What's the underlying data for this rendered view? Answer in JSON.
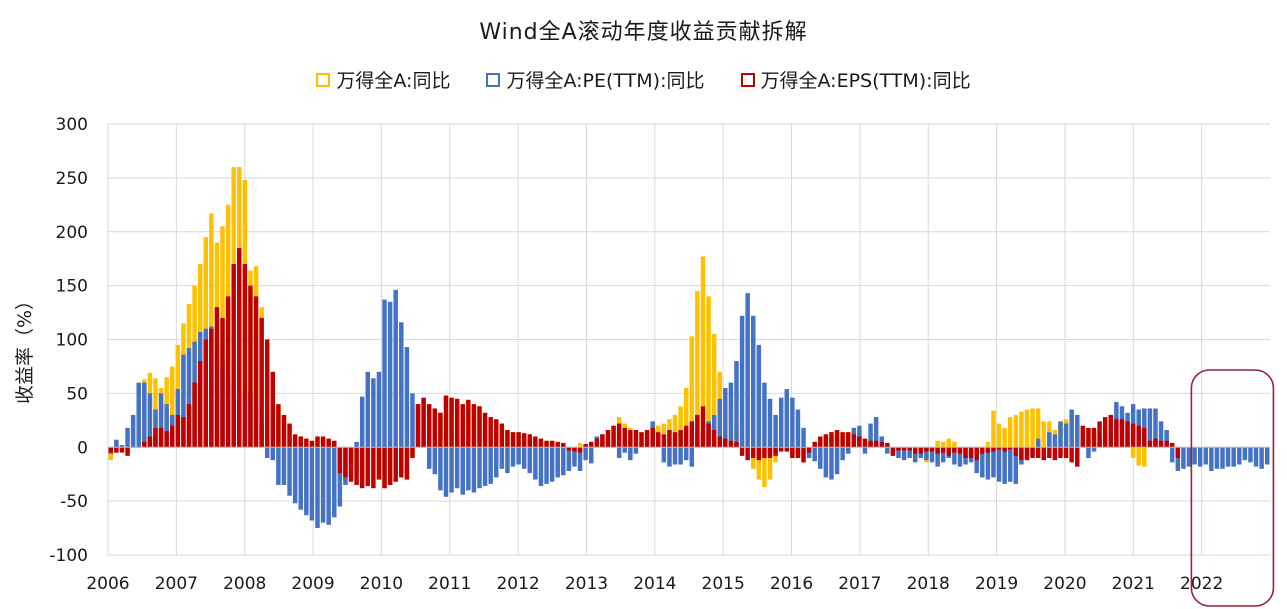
{
  "chart_data": {
    "type": "bar",
    "title": "Wind全A滚动年度收益贡献拆解",
    "ylabel": "收益率（%）",
    "xlabel": "",
    "ylim": [
      -100,
      300
    ],
    "yticks": [
      "300",
      "250",
      "200",
      "150",
      "100",
      "50",
      "0",
      "-50",
      "-100"
    ],
    "xticks": [
      "2006",
      "2007",
      "2008",
      "2009",
      "2010",
      "2011",
      "2012",
      "2013",
      "2014",
      "2015",
      "2016",
      "2017",
      "2018",
      "2019",
      "2020",
      "2021",
      "2022"
    ],
    "grid": true,
    "legend_position": "top",
    "highlight": {
      "x_start": 2021.85,
      "x_end": 2023.05,
      "color": "#9b2335"
    },
    "x_start": 2006,
    "x_end": 2023,
    "series": [
      {
        "name": "万得全A:同比",
        "color": "#ffc000",
        "values": [
          -12,
          5,
          -3,
          -6,
          15,
          30,
          63,
          69,
          64,
          55,
          65,
          75,
          95,
          115,
          133,
          150,
          170,
          195,
          217,
          190,
          205,
          225,
          260,
          260,
          248,
          164,
          168,
          130,
          98,
          68,
          40,
          30,
          22,
          12,
          10,
          8,
          6,
          10,
          10,
          8,
          6,
          -38,
          -28,
          -15,
          -24,
          -32,
          -36,
          -34,
          -30,
          -38,
          -35,
          -32,
          -28,
          -30,
          -10,
          40,
          46,
          40,
          36,
          32,
          48,
          46,
          45,
          40,
          44,
          40,
          38,
          32,
          28,
          26,
          22,
          16,
          14,
          14,
          13,
          12,
          10,
          8,
          6,
          6,
          5,
          4,
          -12,
          -15,
          4,
          3,
          5,
          8,
          12,
          16,
          20,
          28,
          22,
          18,
          16,
          14,
          16,
          18,
          20,
          22,
          26,
          30,
          38,
          55,
          103,
          145,
          177,
          140,
          105,
          70,
          50,
          40,
          20,
          5,
          -8,
          -20,
          -30,
          -37,
          -30,
          -14,
          -4,
          -4,
          -10,
          -10,
          -14,
          -5,
          5,
          10,
          12,
          14,
          16,
          14,
          14,
          12,
          10,
          8,
          6,
          6,
          5,
          4,
          -8,
          -3,
          -3,
          -3,
          -6,
          -10,
          -14,
          -4,
          6,
          5,
          8,
          5,
          -6,
          -10,
          -10,
          -12,
          -6,
          5,
          34,
          22,
          18,
          28,
          30,
          33,
          35,
          36,
          36,
          24,
          24,
          16,
          24,
          26,
          28,
          24,
          20,
          16,
          12,
          8,
          6,
          6,
          6,
          4,
          4,
          -10,
          -17,
          -18
        ],
        "note": "total"
      },
      {
        "name": "万得全A:PE(TTM):同比",
        "color": "#4472c4",
        "values": [
          -6,
          7,
          2,
          18,
          30,
          60,
          60,
          50,
          35,
          50,
          40,
          30,
          54,
          86,
          92,
          98,
          107,
          110,
          112,
          95,
          80,
          65,
          60,
          50,
          50,
          50,
          40,
          20,
          -10,
          -12,
          -35,
          -35,
          -45,
          -52,
          -58,
          -63,
          -68,
          -75,
          -70,
          -72,
          -65,
          -55,
          -35,
          -28,
          5,
          47,
          70,
          64,
          70,
          137,
          135,
          146,
          116,
          93,
          50,
          40,
          10,
          -20,
          -25,
          -40,
          -46,
          -42,
          -38,
          -44,
          -40,
          -42,
          -38,
          -36,
          -34,
          -28,
          -20,
          -24,
          -18,
          -16,
          -20,
          -24,
          -30,
          -36,
          -34,
          -32,
          -28,
          -26,
          -22,
          -18,
          -22,
          -12,
          -15,
          10,
          12,
          6,
          0,
          -10,
          -5,
          -12,
          -6,
          4,
          10,
          24,
          12,
          -14,
          -18,
          -16,
          -16,
          -12,
          -18,
          12,
          14,
          24,
          30,
          45,
          55,
          60,
          80,
          122,
          143,
          122,
          95,
          60,
          45,
          30,
          46,
          54,
          46,
          35,
          18,
          -10,
          -13,
          -20,
          -28,
          -30,
          -25,
          -12,
          -6,
          18,
          20,
          -6,
          22,
          28,
          10,
          -6,
          -4,
          -10,
          -12,
          -10,
          -14,
          -10,
          -12,
          -14,
          -18,
          -14,
          -10,
          -16,
          -18,
          -16,
          -14,
          -24,
          -28,
          -30,
          -28,
          -32,
          -34,
          -32,
          -34,
          -16,
          -10,
          -8,
          8,
          -6,
          14,
          12,
          24,
          22,
          35,
          30,
          5,
          -10,
          -4,
          10,
          22,
          30,
          42,
          38,
          32,
          40,
          35,
          36,
          36,
          36,
          24,
          16,
          -14,
          -22,
          -20,
          -18,
          -16,
          -18,
          -16,
          -22,
          -20,
          -20,
          -18,
          -18,
          -16,
          -12,
          -14,
          -18,
          -20,
          -16
        ]
      },
      {
        "name": "万得全A:EPS(TTM):同比",
        "color": "#c00000",
        "values": [
          -5,
          -5,
          -5,
          -8,
          0,
          0,
          5,
          10,
          18,
          18,
          15,
          20,
          30,
          28,
          40,
          60,
          80,
          100,
          110,
          130,
          120,
          140,
          170,
          185,
          170,
          150,
          140,
          120,
          100,
          70,
          40,
          30,
          22,
          12,
          10,
          8,
          6,
          10,
          10,
          8,
          6,
          -24,
          -28,
          -32,
          -35,
          -38,
          -36,
          -38,
          -30,
          -38,
          -35,
          -32,
          -28,
          -30,
          -10,
          40,
          46,
          40,
          36,
          32,
          48,
          46,
          45,
          40,
          44,
          40,
          38,
          32,
          28,
          26,
          22,
          16,
          14,
          14,
          13,
          12,
          10,
          8,
          6,
          6,
          5,
          4,
          -3,
          -4,
          -5,
          3,
          5,
          8,
          12,
          16,
          20,
          22,
          18,
          16,
          16,
          14,
          16,
          18,
          14,
          12,
          16,
          14,
          16,
          20,
          24,
          30,
          38,
          22,
          16,
          10,
          8,
          6,
          5,
          -8,
          -12,
          -10,
          -12,
          -10,
          -10,
          -8,
          -4,
          -4,
          -10,
          -10,
          -14,
          -5,
          5,
          10,
          12,
          14,
          16,
          14,
          14,
          12,
          10,
          8,
          6,
          6,
          5,
          4,
          -8,
          -3,
          -3,
          -3,
          -6,
          -6,
          -4,
          -4,
          -6,
          -5,
          -8,
          -5,
          -6,
          -10,
          -10,
          -12,
          -6,
          -5,
          -4,
          -2,
          -4,
          -2,
          -8,
          -12,
          -12,
          -10,
          -10,
          -12,
          -10,
          -12,
          -10,
          -10,
          -14,
          -18,
          20,
          18,
          18,
          24,
          28,
          30,
          26,
          26,
          24,
          22,
          20,
          18,
          6,
          8,
          6,
          6,
          4,
          -10
        ]
      }
    ]
  }
}
